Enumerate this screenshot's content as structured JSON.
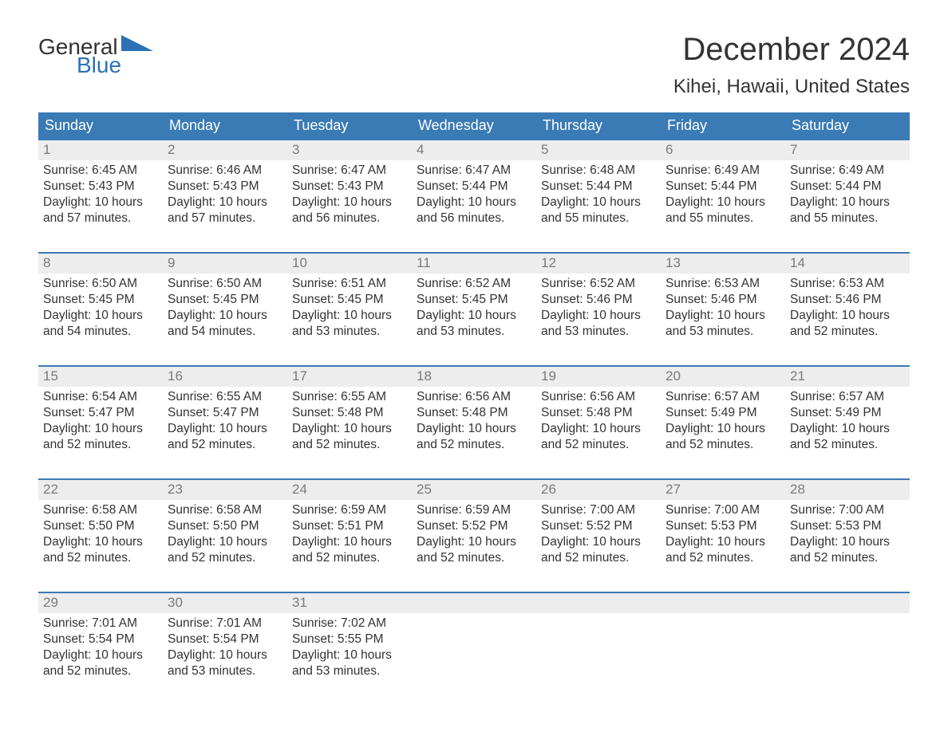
{
  "logo": {
    "line1": "General",
    "line2": "Blue"
  },
  "title": "December 2024",
  "location": "Kihei, Hawaii, United States",
  "colors": {
    "header_bg": "#3a7ab5",
    "header_text": "#ffffff",
    "border": "#3a7ab5",
    "daynum_bg": "#ededed",
    "daynum_text": "#7a7a7a",
    "body_text": "#333333",
    "logo_blue": "#2a72b5",
    "background": "#ffffff"
  },
  "typography": {
    "title_fontsize": 40,
    "location_fontsize": 24,
    "dow_fontsize": 18,
    "daynum_fontsize": 17,
    "body_fontsize": 15.5
  },
  "dow": [
    "Sunday",
    "Monday",
    "Tuesday",
    "Wednesday",
    "Thursday",
    "Friday",
    "Saturday"
  ],
  "labels": {
    "sunrise": "Sunrise",
    "sunset": "Sunset",
    "daylight": "Daylight",
    "hours": "hours",
    "and": "and",
    "minutes": "minutes."
  },
  "weeks": [
    [
      {
        "n": "1",
        "sr": "6:45 AM",
        "ss": "5:43 PM",
        "dh": "10",
        "dm": "57"
      },
      {
        "n": "2",
        "sr": "6:46 AM",
        "ss": "5:43 PM",
        "dh": "10",
        "dm": "57"
      },
      {
        "n": "3",
        "sr": "6:47 AM",
        "ss": "5:43 PM",
        "dh": "10",
        "dm": "56"
      },
      {
        "n": "4",
        "sr": "6:47 AM",
        "ss": "5:44 PM",
        "dh": "10",
        "dm": "56"
      },
      {
        "n": "5",
        "sr": "6:48 AM",
        "ss": "5:44 PM",
        "dh": "10",
        "dm": "55"
      },
      {
        "n": "6",
        "sr": "6:49 AM",
        "ss": "5:44 PM",
        "dh": "10",
        "dm": "55"
      },
      {
        "n": "7",
        "sr": "6:49 AM",
        "ss": "5:44 PM",
        "dh": "10",
        "dm": "55"
      }
    ],
    [
      {
        "n": "8",
        "sr": "6:50 AM",
        "ss": "5:45 PM",
        "dh": "10",
        "dm": "54"
      },
      {
        "n": "9",
        "sr": "6:50 AM",
        "ss": "5:45 PM",
        "dh": "10",
        "dm": "54"
      },
      {
        "n": "10",
        "sr": "6:51 AM",
        "ss": "5:45 PM",
        "dh": "10",
        "dm": "53"
      },
      {
        "n": "11",
        "sr": "6:52 AM",
        "ss": "5:45 PM",
        "dh": "10",
        "dm": "53"
      },
      {
        "n": "12",
        "sr": "6:52 AM",
        "ss": "5:46 PM",
        "dh": "10",
        "dm": "53"
      },
      {
        "n": "13",
        "sr": "6:53 AM",
        "ss": "5:46 PM",
        "dh": "10",
        "dm": "53"
      },
      {
        "n": "14",
        "sr": "6:53 AM",
        "ss": "5:46 PM",
        "dh": "10",
        "dm": "52"
      }
    ],
    [
      {
        "n": "15",
        "sr": "6:54 AM",
        "ss": "5:47 PM",
        "dh": "10",
        "dm": "52"
      },
      {
        "n": "16",
        "sr": "6:55 AM",
        "ss": "5:47 PM",
        "dh": "10",
        "dm": "52"
      },
      {
        "n": "17",
        "sr": "6:55 AM",
        "ss": "5:48 PM",
        "dh": "10",
        "dm": "52"
      },
      {
        "n": "18",
        "sr": "6:56 AM",
        "ss": "5:48 PM",
        "dh": "10",
        "dm": "52"
      },
      {
        "n": "19",
        "sr": "6:56 AM",
        "ss": "5:48 PM",
        "dh": "10",
        "dm": "52"
      },
      {
        "n": "20",
        "sr": "6:57 AM",
        "ss": "5:49 PM",
        "dh": "10",
        "dm": "52"
      },
      {
        "n": "21",
        "sr": "6:57 AM",
        "ss": "5:49 PM",
        "dh": "10",
        "dm": "52"
      }
    ],
    [
      {
        "n": "22",
        "sr": "6:58 AM",
        "ss": "5:50 PM",
        "dh": "10",
        "dm": "52"
      },
      {
        "n": "23",
        "sr": "6:58 AM",
        "ss": "5:50 PM",
        "dh": "10",
        "dm": "52"
      },
      {
        "n": "24",
        "sr": "6:59 AM",
        "ss": "5:51 PM",
        "dh": "10",
        "dm": "52"
      },
      {
        "n": "25",
        "sr": "6:59 AM",
        "ss": "5:52 PM",
        "dh": "10",
        "dm": "52"
      },
      {
        "n": "26",
        "sr": "7:00 AM",
        "ss": "5:52 PM",
        "dh": "10",
        "dm": "52"
      },
      {
        "n": "27",
        "sr": "7:00 AM",
        "ss": "5:53 PM",
        "dh": "10",
        "dm": "52"
      },
      {
        "n": "28",
        "sr": "7:00 AM",
        "ss": "5:53 PM",
        "dh": "10",
        "dm": "52"
      }
    ],
    [
      {
        "n": "29",
        "sr": "7:01 AM",
        "ss": "5:54 PM",
        "dh": "10",
        "dm": "52"
      },
      {
        "n": "30",
        "sr": "7:01 AM",
        "ss": "5:54 PM",
        "dh": "10",
        "dm": "53"
      },
      {
        "n": "31",
        "sr": "7:02 AM",
        "ss": "5:55 PM",
        "dh": "10",
        "dm": "53"
      },
      {
        "empty": true
      },
      {
        "empty": true
      },
      {
        "empty": true
      },
      {
        "empty": true
      }
    ]
  ]
}
